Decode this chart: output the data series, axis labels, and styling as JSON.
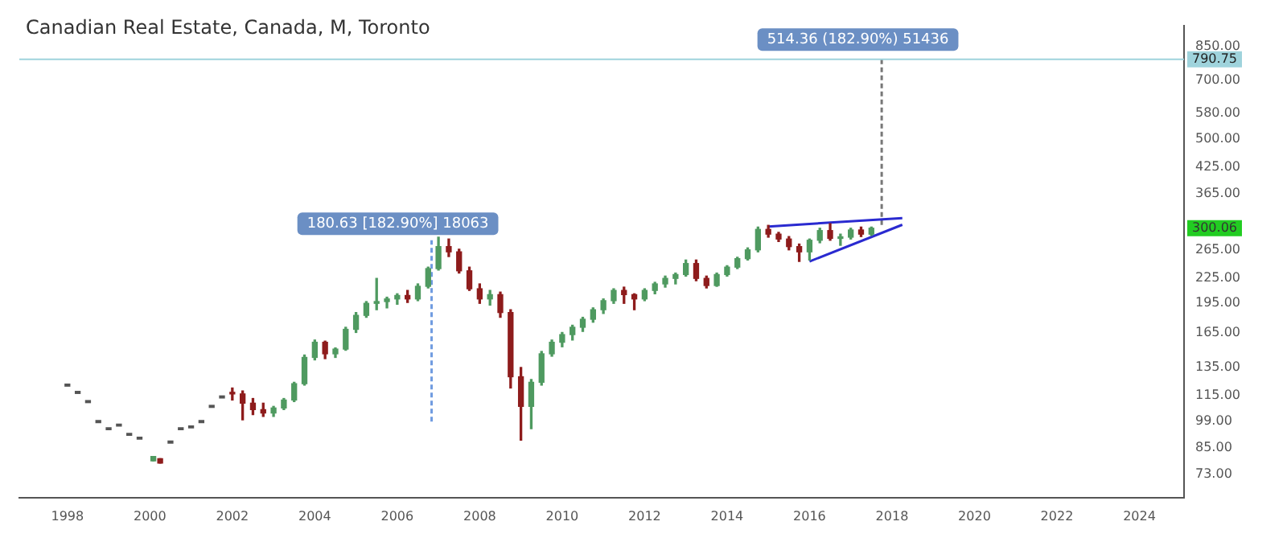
{
  "chart_data": {
    "type": "candlestick",
    "title": "Canadian Real Estate, Canada, M, Toronto",
    "x": [
      "1998-01",
      "1998-04",
      "1998-07",
      "1998-10",
      "1999-01",
      "1999-04",
      "1999-07",
      "1999-10",
      "2000-02",
      "2000-04",
      "2000-07",
      "2000-10",
      "2001-01",
      "2001-04",
      "2001-07",
      "2001-10",
      "2002-01",
      "2002-04",
      "2002-07",
      "2002-10",
      "2003-01",
      "2003-04",
      "2003-07",
      "2003-10",
      "2004-01",
      "2004-04",
      "2004-07",
      "2004-10",
      "2005-01",
      "2005-04",
      "2005-07",
      "2005-10",
      "2006-01",
      "2006-04",
      "2006-07",
      "2006-10",
      "2007-01",
      "2007-04",
      "2007-07",
      "2007-10",
      "2008-01",
      "2008-04",
      "2008-07",
      "2008-10",
      "2009-01",
      "2009-04",
      "2009-07",
      "2009-10",
      "2010-01",
      "2010-04",
      "2010-07",
      "2010-10",
      "2011-01",
      "2011-04",
      "2011-07",
      "2011-10",
      "2012-01",
      "2012-04",
      "2012-07",
      "2012-10",
      "2013-01",
      "2013-04",
      "2013-07",
      "2013-10",
      "2014-01",
      "2014-04",
      "2014-07",
      "2014-10",
      "2015-01",
      "2015-04",
      "2015-07",
      "2015-10",
      "2016-01",
      "2016-04",
      "2016-07",
      "2016-10",
      "2017-01",
      "2017-04",
      "2017-07"
    ],
    "ohlc": [
      [
        122,
        122,
        122,
        122
      ],
      [
        117,
        117,
        117,
        117
      ],
      [
        111,
        111,
        111,
        111
      ],
      [
        99,
        99,
        99,
        99
      ],
      [
        95,
        95,
        95,
        95
      ],
      [
        97,
        97,
        97,
        97
      ],
      [
        92,
        92,
        92,
        92
      ],
      [
        90,
        90,
        90,
        90
      ],
      [
        79,
        81,
        79,
        81
      ],
      [
        80,
        80,
        78,
        78
      ],
      [
        88,
        88,
        88,
        88
      ],
      [
        95,
        95,
        95,
        95
      ],
      [
        96,
        96,
        96,
        96
      ],
      [
        99,
        99,
        99,
        99
      ],
      [
        108,
        108,
        108,
        108
      ],
      [
        114,
        114,
        114,
        114
      ],
      [
        117,
        120,
        112,
        116
      ],
      [
        116,
        118,
        100,
        110
      ],
      [
        110,
        113,
        103,
        106
      ],
      [
        106,
        110,
        102,
        104
      ],
      [
        104,
        108,
        102,
        107
      ],
      [
        107,
        113,
        106,
        112
      ],
      [
        112,
        124,
        111,
        123
      ],
      [
        123,
        145,
        122,
        143
      ],
      [
        143,
        158,
        141,
        156
      ],
      [
        156,
        157,
        142,
        146
      ],
      [
        146,
        151,
        143,
        150
      ],
      [
        150,
        170,
        149,
        168
      ],
      [
        168,
        185,
        165,
        182
      ],
      [
        182,
        197,
        180,
        195
      ],
      [
        195,
        225,
        188,
        197
      ],
      [
        197,
        202,
        190,
        200
      ],
      [
        200,
        206,
        194,
        204
      ],
      [
        204,
        210,
        196,
        200
      ],
      [
        200,
        218,
        198,
        215
      ],
      [
        215,
        240,
        213,
        238
      ],
      [
        238,
        285,
        236,
        270
      ],
      [
        270,
        282,
        255,
        262
      ],
      [
        262,
        266,
        232,
        235
      ],
      [
        235,
        240,
        210,
        212
      ],
      [
        212,
        218,
        195,
        200
      ],
      [
        200,
        210,
        193,
        205
      ],
      [
        205,
        208,
        180,
        185
      ],
      [
        185,
        188,
        120,
        128
      ],
      [
        128,
        135,
        89,
        108
      ],
      [
        108,
        126,
        95,
        124
      ],
      [
        124,
        148,
        122,
        146
      ],
      [
        146,
        158,
        144,
        156
      ],
      [
        156,
        165,
        152,
        163
      ],
      [
        163,
        172,
        158,
        170
      ],
      [
        170,
        180,
        166,
        178
      ],
      [
        178,
        190,
        175,
        188
      ],
      [
        188,
        200,
        184,
        198
      ],
      [
        198,
        212,
        195,
        210
      ],
      [
        210,
        214,
        195,
        205
      ],
      [
        205,
        206,
        188,
        200
      ],
      [
        200,
        212,
        198,
        210
      ],
      [
        210,
        220,
        206,
        218
      ],
      [
        218,
        228,
        214,
        225
      ],
      [
        225,
        232,
        218,
        230
      ],
      [
        230,
        250,
        228,
        245
      ],
      [
        245,
        250,
        222,
        225
      ],
      [
        225,
        228,
        213,
        216
      ],
      [
        216,
        232,
        215,
        230
      ],
      [
        230,
        242,
        228,
        240
      ],
      [
        240,
        254,
        238,
        252
      ],
      [
        252,
        268,
        250,
        265
      ],
      [
        265,
        302,
        262,
        298
      ],
      [
        298,
        305,
        285,
        290
      ],
      [
        290,
        293,
        278,
        282
      ],
      [
        282,
        286,
        265,
        270
      ],
      [
        270,
        274,
        248,
        262
      ],
      [
        262,
        282,
        250,
        280
      ],
      [
        280,
        300,
        276,
        296
      ],
      [
        296,
        308,
        280,
        283
      ],
      [
        283,
        290,
        272,
        285
      ],
      [
        285,
        300,
        282,
        297
      ],
      [
        297,
        302,
        286,
        290
      ],
      [
        290,
        302,
        288,
        300.06
      ]
    ],
    "series": [
      {
        "type": "line",
        "x": [
          "2015-01",
          "2018-04"
        ],
        "values": [
          303,
          318
        ],
        "color": "#2a2ad0",
        "line_style": "solid"
      },
      {
        "type": "line",
        "x": [
          "2016-01",
          "2018-04"
        ],
        "values": [
          248,
          306
        ],
        "color": "#2a2ad0",
        "line_style": "solid"
      },
      {
        "type": "line",
        "x": [
          "2006-11",
          "2006-11"
        ],
        "values": [
          99,
          280
        ],
        "color": "#6f9be0",
        "line_style": "dashed"
      },
      {
        "type": "line",
        "x": [
          "2017-10",
          "2017-10"
        ],
        "values": [
          790.75,
          300.06
        ],
        "color": "#777777",
        "line_style": "dashed"
      }
    ],
    "annotations": [
      "180.63 [182.90%] 18063",
      "514.36 (182.90%) 51436",
      "300.06"
    ],
    "ref_lines": [
      {
        "axis": "y",
        "value": 790.75,
        "label": "790.75",
        "color": "#9fd3dc"
      }
    ],
    "xlim": [
      "1996-11",
      "2025-02"
    ],
    "xticks": [
      "1998",
      "2000",
      "2002",
      "2004",
      "2006",
      "2008",
      "2010",
      "2012",
      "2014",
      "2016",
      "2018",
      "2020",
      "2022",
      "2024"
    ],
    "ylim": [
      64,
      960
    ],
    "yticks": [
      {
        "value": 73,
        "label": "73.00"
      },
      {
        "value": 85,
        "label": "85.00"
      },
      {
        "value": 99,
        "label": "99.00"
      },
      {
        "value": 115,
        "label": "115.00"
      },
      {
        "value": 135,
        "label": "135.00"
      },
      {
        "value": 165,
        "label": "165.00"
      },
      {
        "value": 195,
        "label": "195.00"
      },
      {
        "value": 225,
        "label": "225.00"
      },
      {
        "value": 265,
        "label": "265.00"
      },
      {
        "value": 365,
        "label": "365.00"
      },
      {
        "value": 425,
        "label": "425.00"
      },
      {
        "value": 500,
        "label": "500.00"
      },
      {
        "value": 580,
        "label": "580.00"
      },
      {
        "value": 700,
        "label": "700.00"
      },
      {
        "value": 850,
        "label": "850.00"
      }
    ],
    "log": "y",
    "grid": false,
    "legend": false,
    "marker": "none"
  }
}
